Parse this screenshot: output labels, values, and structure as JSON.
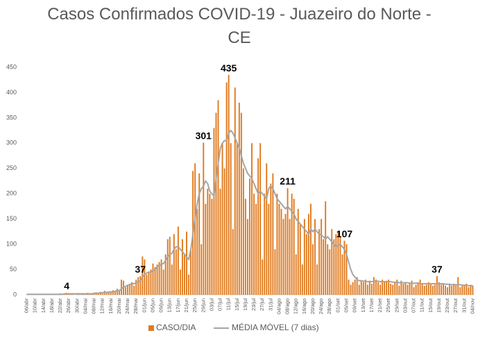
{
  "chart_data": {
    "type": "bar",
    "title": "Casos Confirmados COVID-19 - Juazeiro do Norte - CE",
    "categories": [
      "06/abr",
      null,
      null,
      null,
      "10/abr",
      null,
      null,
      null,
      "14/abr",
      null,
      null,
      null,
      "18/abr",
      null,
      null,
      null,
      "22/abr",
      null,
      null,
      null,
      "26/abr",
      null,
      null,
      null,
      "30/abr",
      null,
      null,
      null,
      "04/mai",
      null,
      null,
      null,
      "08/mai",
      null,
      null,
      null,
      "12/mai",
      null,
      null,
      null,
      "16/mai",
      null,
      null,
      null,
      "20/mai",
      null,
      null,
      null,
      "24/mai",
      null,
      null,
      null,
      "28/mai",
      null,
      null,
      null,
      "01/jun",
      null,
      null,
      null,
      "05/jun",
      null,
      null,
      null,
      "09/jun",
      null,
      null,
      null,
      "13/jun",
      null,
      null,
      null,
      "17/jun",
      null,
      null,
      null,
      "21/jun",
      null,
      null,
      null,
      "25/jun",
      null,
      null,
      null,
      "29/jun",
      null,
      null,
      null,
      "03/jul",
      null,
      null,
      null,
      "07/jul",
      null,
      null,
      null,
      "11/jul",
      null,
      null,
      null,
      "15/jul",
      null,
      null,
      null,
      "19/jul",
      null,
      null,
      null,
      "23/jul",
      null,
      null,
      null,
      "27/jul",
      null,
      null,
      null,
      "31/jul",
      null,
      null,
      null,
      "04/ago",
      null,
      null,
      null,
      "08/ago",
      null,
      null,
      null,
      "12/ago",
      null,
      null,
      null,
      "16/ago",
      null,
      null,
      null,
      "20/ago",
      null,
      null,
      null,
      "24/ago",
      null,
      null,
      null,
      "28/ago",
      null,
      null,
      null,
      "01/set",
      null,
      null,
      null,
      "05/set",
      null,
      null,
      null,
      "09/set",
      null,
      null,
      null,
      "13/set",
      null,
      null,
      null,
      "17/set",
      null,
      null,
      null,
      "21/set",
      null,
      null,
      null,
      "25/set",
      null,
      null,
      null,
      "29/set",
      null,
      null,
      null,
      "03/out",
      null,
      null,
      null,
      "07/out",
      null,
      null,
      null,
      "11/out",
      null,
      null,
      null,
      "15/out",
      null,
      null,
      null,
      "19/out",
      null,
      null,
      null,
      "23/out",
      null,
      null,
      null,
      "27/out",
      null,
      null,
      null,
      "31/out",
      null,
      null,
      null,
      "04/nov"
    ],
    "series": [
      {
        "name": "CASO/DIA",
        "color": "#e07b20",
        "type": "bar",
        "values": [
          0,
          1,
          0,
          2,
          0,
          1,
          0,
          0,
          1,
          2,
          1,
          0,
          1,
          2,
          0,
          1,
          3,
          1,
          2,
          4,
          2,
          1,
          3,
          0,
          1,
          2,
          3,
          1,
          2,
          4,
          3,
          2,
          4,
          5,
          3,
          6,
          4,
          8,
          5,
          7,
          6,
          9,
          7,
          12,
          10,
          30,
          28,
          15,
          20,
          22,
          25,
          18,
          30,
          35,
          37,
          76,
          70,
          40,
          45,
          50,
          62,
          55,
          60,
          65,
          70,
          50,
          80,
          110,
          115,
          60,
          120,
          90,
          135,
          50,
          110,
          80,
          125,
          40,
          90,
          245,
          260,
          170,
          240,
          100,
          301,
          180,
          210,
          200,
          190,
          330,
          360,
          385,
          210,
          300,
          250,
          420,
          435,
          300,
          130,
          410,
          300,
          380,
          360,
          250,
          190,
          150,
          230,
          300,
          200,
          180,
          270,
          300,
          70,
          200,
          260,
          180,
          220,
          240,
          90,
          200,
          180,
          170,
          150,
          160,
          211,
          150,
          200,
          190,
          80,
          170,
          140,
          60,
          150,
          120,
          160,
          180,
          100,
          150,
          60,
          130,
          150,
          110,
          185,
          100,
          90,
          130,
          110,
          120,
          125,
          115,
          80,
          107,
          100,
          30,
          20,
          25,
          30,
          35,
          20,
          28,
          25,
          30,
          20,
          28,
          22,
          35,
          30,
          25,
          20,
          30,
          25,
          28,
          30,
          22,
          20,
          25,
          30,
          18,
          28,
          22,
          25,
          20,
          22,
          28,
          15,
          20,
          25,
          30,
          22,
          18,
          20,
          25,
          22,
          18,
          20,
          37,
          25,
          20,
          22,
          18,
          15,
          20,
          18,
          22,
          20,
          35,
          15,
          18,
          20,
          22,
          15,
          20,
          18
        ],
        "value_labels": [
          null,
          null,
          null,
          null,
          null,
          null,
          null,
          null,
          null,
          null,
          null,
          null,
          null,
          null,
          null,
          null,
          null,
          null,
          null,
          "4",
          null,
          null,
          null,
          null,
          null,
          null,
          null,
          null,
          null,
          null,
          null,
          null,
          null,
          null,
          null,
          null,
          null,
          null,
          null,
          null,
          null,
          null,
          null,
          null,
          null,
          null,
          null,
          null,
          null,
          null,
          null,
          null,
          null,
          null,
          "37",
          null,
          null,
          null,
          null,
          null,
          null,
          null,
          null,
          null,
          null,
          null,
          null,
          null,
          null,
          null,
          null,
          null,
          null,
          null,
          null,
          null,
          null,
          null,
          null,
          null,
          null,
          null,
          null,
          null,
          "301",
          null,
          null,
          null,
          null,
          null,
          null,
          null,
          null,
          null,
          null,
          null,
          "435",
          null,
          null,
          null,
          null,
          null,
          null,
          null,
          null,
          null,
          null,
          null,
          null,
          null,
          null,
          null,
          null,
          null,
          null,
          null,
          null,
          null,
          null,
          null,
          null,
          null,
          null,
          null,
          "211",
          null,
          null,
          null,
          null,
          null,
          null,
          null,
          null,
          null,
          null,
          null,
          null,
          null,
          null,
          null,
          null,
          null,
          null,
          null,
          null,
          null,
          null,
          null,
          null,
          null,
          null,
          "107",
          null,
          null,
          null,
          null,
          null,
          null,
          null,
          null,
          null,
          null,
          null,
          null,
          null,
          null,
          null,
          null,
          null,
          null,
          null,
          null,
          null,
          null,
          null,
          null,
          null,
          null,
          null,
          null,
          null,
          null,
          null,
          null,
          null,
          null,
          null,
          null,
          null,
          null,
          null,
          null,
          null,
          null,
          null,
          "37",
          null,
          null,
          null,
          null,
          null,
          null,
          null,
          null,
          null,
          null,
          null,
          null,
          null,
          null,
          null,
          null,
          null
        ]
      },
      {
        "name": "MÉDIA MÓVEL (7 dias)",
        "color": "#a5a5a5",
        "type": "line",
        "values": [
          1,
          1,
          1,
          1,
          1,
          1,
          1,
          1,
          1,
          1,
          1,
          1,
          1,
          1,
          1,
          1,
          1,
          1,
          2,
          2,
          2,
          2,
          2,
          2,
          2,
          2,
          2,
          2,
          2,
          2,
          2,
          2,
          3,
          3,
          3,
          4,
          4,
          5,
          5,
          5,
          6,
          6,
          7,
          8,
          8,
          12,
          15,
          17,
          19,
          20,
          22,
          22,
          24,
          26,
          28,
          35,
          40,
          43,
          45,
          45,
          48,
          50,
          55,
          58,
          60,
          62,
          68,
          75,
          80,
          82,
          90,
          95,
          95,
          90,
          85,
          80,
          75,
          70,
          90,
          120,
          150,
          180,
          200,
          210,
          215,
          225,
          220,
          205,
          200,
          195,
          230,
          260,
          290,
          300,
          305,
          305,
          320,
          325,
          320,
          310,
          300,
          290,
          275,
          260,
          250,
          240,
          235,
          230,
          220,
          210,
          200,
          205,
          200,
          195,
          190,
          210,
          215,
          210,
          200,
          190,
          185,
          180,
          175,
          170,
          175,
          170,
          165,
          160,
          150,
          145,
          140,
          135,
          130,
          125,
          120,
          130,
          125,
          130,
          125,
          120,
          118,
          115,
          110,
          115,
          110,
          105,
          100,
          95,
          98,
          100,
          95,
          90,
          80,
          65,
          50,
          40,
          35,
          30,
          28,
          28,
          27,
          27,
          26,
          26,
          26,
          27,
          27,
          27,
          26,
          26,
          26,
          26,
          26,
          26,
          25,
          25,
          25,
          24,
          24,
          24,
          24,
          24,
          23,
          23,
          23,
          23,
          23,
          22,
          22,
          22,
          22,
          22,
          22,
          22,
          22,
          22,
          22,
          22,
          22,
          21,
          21,
          21,
          20,
          20,
          20,
          20,
          20,
          19,
          19,
          19,
          18,
          18,
          18
        ]
      }
    ],
    "ylim": [
      0,
      450
    ],
    "yticks": [
      0,
      50,
      100,
      150,
      200,
      250,
      300,
      350,
      400,
      450
    ],
    "grid": false
  }
}
